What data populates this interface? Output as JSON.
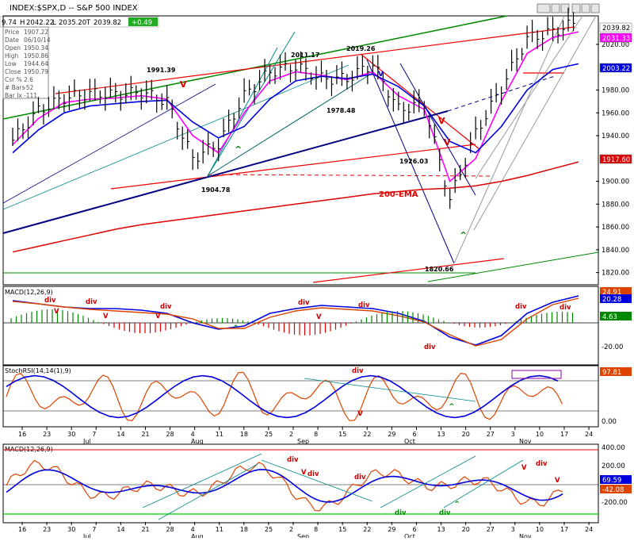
{
  "window": {
    "title": "INDEX:$SPX,D -- S&P 500 INDEX",
    "quote_fields": [
      "9.74",
      "H",
      "2042.22",
      "L",
      "2035.20",
      "T",
      "2039.82",
      "+0.49"
    ]
  },
  "info_box": [
    {
      "label": "Price",
      "value": "1907.22"
    },
    {
      "label": "Date",
      "value": "06/10/14"
    },
    {
      "label": "Open",
      "value": "1950.34"
    },
    {
      "label": "High",
      "value": "1950.86"
    },
    {
      "label": "Low",
      "value": "1944.64"
    },
    {
      "label": "Close",
      "value": "1950.79"
    },
    {
      "label": "Csr %",
      "value": "2.6"
    },
    {
      "label": "# Bars",
      "value": "-52"
    },
    {
      "label": "Bar Ix",
      "value": "-111"
    }
  ],
  "colors": {
    "price_bar": "#000000",
    "ema_fast": "#ff00ff",
    "ema_slow": "#0000dd",
    "ema200": "#dd0000",
    "channel_red": "#ee0000",
    "trend_green": "#008800",
    "trend_navy": "#000080",
    "macd_line": "#0000dd",
    "signal_line": "#dd4400",
    "hist_pos": "#008800",
    "hist_neg": "#dd0000",
    "annotation_red": "#cc0000",
    "annotation_green": "#008800",
    "stoch": "#dd4400"
  },
  "price_panel": {
    "right_axis_ticks": [
      "2020.00",
      "1980.00",
      "1960.00",
      "1940.00",
      "1900.00",
      "1880.00",
      "1860.00",
      "1840.00",
      "1820.00"
    ],
    "value_tags": [
      {
        "text": "2039.82",
        "color": "#ffffff",
        "fg": "#000000"
      },
      {
        "text": "2031.33",
        "color": "#ff00ff",
        "fg": "#ffffff"
      },
      {
        "text": "2003.22",
        "color": "#0000dd",
        "fg": "#ffffff"
      },
      {
        "text": "1917.60",
        "color": "#dd0000",
        "fg": "#ffffff"
      }
    ],
    "annotations": [
      "1991.39",
      "2011.17",
      "2019.26",
      "1978.48",
      "1904.78",
      "1926.03",
      "1820.66",
      "200-EMA"
    ],
    "marks": [
      {
        "text": "V",
        "color": "red"
      },
      {
        "text": "V",
        "color": "blue"
      },
      {
        "text": "V",
        "color": "red"
      },
      {
        "text": "V",
        "color": "red"
      },
      {
        "text": "^",
        "color": "green"
      },
      {
        "text": "^",
        "color": "green"
      }
    ]
  },
  "macd_panel": {
    "title": "MACD(12,26,9)",
    "tags": [
      {
        "text": "24.91",
        "color": "#dd4400"
      },
      {
        "text": "20.28",
        "color": "#0000dd"
      },
      {
        "text": "4.63",
        "color": "#008800"
      }
    ],
    "axis": [
      "-20.00"
    ],
    "annotations": [
      "div",
      "div",
      "div",
      "div",
      "div",
      "div",
      "div",
      "div"
    ],
    "marks": [
      "V",
      "V",
      "V",
      "V",
      "^"
    ]
  },
  "stoch_panel": {
    "title": "StochRSI(14,14(1),9)",
    "tag": "97.81",
    "axis": [
      "0.00"
    ],
    "annotations": [
      "div"
    ],
    "marks": [
      "V",
      "^"
    ]
  },
  "weekly_macd_panel": {
    "title": "MACD(12,26,9)",
    "tags": [
      {
        "text": "69.59",
        "color": "#0000dd"
      },
      {
        "text": "-42.08",
        "color": "#dd4400"
      }
    ],
    "axis": [
      "400.00",
      "200.00",
      "-200.00"
    ],
    "annotations": [
      "div",
      "div",
      "div",
      "div",
      "div",
      "div"
    ],
    "marks": [
      "V",
      "V",
      "V",
      "^"
    ]
  },
  "x_axis": {
    "day_ticks": [
      "16",
      "23",
      "30",
      "7",
      "14",
      "21",
      "28",
      "4",
      "11",
      "18",
      "25",
      "2",
      "8",
      "15",
      "22",
      "29",
      "6",
      "13",
      "20",
      "27",
      "3",
      "10",
      "17",
      "24"
    ],
    "month_labels": [
      "Jul",
      "Aug",
      "Sep",
      "Oct",
      "Nov"
    ]
  },
  "chart_data": {
    "type": "line",
    "title": "INDEX:$SPX,D -- S&P 500 INDEX",
    "xlabel": "",
    "ylabel": "",
    "x": [
      "Jun 16",
      "Jun 23",
      "Jun 30",
      "Jul 7",
      "Jul 14",
      "Jul 21",
      "Jul 28",
      "Aug 4",
      "Aug 11",
      "Aug 18",
      "Aug 25",
      "Sep 2",
      "Sep 8",
      "Sep 15",
      "Sep 22",
      "Sep 29",
      "Oct 6",
      "Oct 13",
      "Oct 20",
      "Oct 27",
      "Nov 3",
      "Nov 10",
      "Nov 17"
    ],
    "ylim": [
      1810,
      2045
    ],
    "series": [
      {
        "values": [
          1936,
          1962,
          1973,
          1977,
          1976,
          1978,
          1970,
          1920,
          1933,
          1975,
          1996,
          2001,
          1990,
          1990,
          2003,
          1963,
          1968,
          1884,
          1942,
          1982,
          2025,
          2031,
          2040
        ]
      },
      {
        "values": [
          1932,
          1955,
          1969,
          1972,
          1973,
          1975,
          1972,
          1940,
          1925,
          1960,
          1988,
          1996,
          1993,
          1989,
          1996,
          1975,
          1963,
          1900,
          1920,
          1970,
          2012,
          2026,
          2031
        ]
      },
      {
        "values": [
          1925,
          1945,
          1960,
          1966,
          1968,
          1970,
          1971,
          1952,
          1938,
          1948,
          1972,
          1988,
          1992,
          1990,
          1994,
          1983,
          1966,
          1935,
          1925,
          1948,
          1980,
          1998,
          2003
        ]
      },
      {
        "values": [
          1838,
          1843,
          1848,
          1853,
          1858,
          1862,
          1865,
          1868,
          1871,
          1874,
          1877,
          1880,
          1883,
          1886,
          1889,
          1891,
          1893,
          1894,
          1896,
          1900,
          1905,
          1911,
          1917
        ]
      }
    ]
  }
}
